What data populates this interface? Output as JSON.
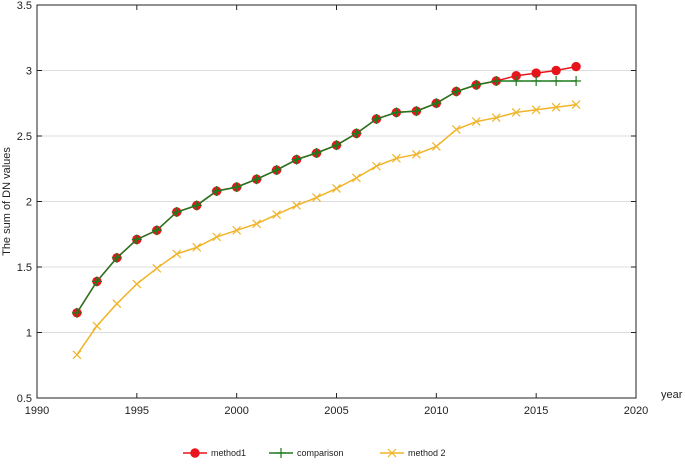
{
  "chart_data": {
    "type": "line",
    "title": "",
    "xlabel": "year",
    "ylabel": "The sum of DN values",
    "xlim": [
      1990,
      2020
    ],
    "ylim": [
      0.5,
      3.5
    ],
    "xticks": [
      1990,
      1995,
      2000,
      2005,
      2010,
      2015,
      2020
    ],
    "yticks": [
      0.5,
      1,
      1.5,
      2,
      2.5,
      3,
      3.5
    ],
    "grid": "horizontal",
    "legend_position": "bottom",
    "x": [
      1992,
      1993,
      1994,
      1995,
      1996,
      1997,
      1998,
      1999,
      2000,
      2001,
      2002,
      2003,
      2004,
      2005,
      2006,
      2007,
      2008,
      2009,
      2010,
      2011,
      2012,
      2013,
      2014,
      2015,
      2016,
      2017
    ],
    "series": [
      {
        "name": "method1",
        "color": "#e8141c",
        "marker": "circle",
        "values": [
          1.15,
          1.39,
          1.57,
          1.71,
          1.78,
          1.92,
          1.97,
          2.08,
          2.11,
          2.17,
          2.24,
          2.32,
          2.37,
          2.43,
          2.52,
          2.63,
          2.68,
          2.69,
          2.75,
          2.84,
          2.89,
          2.92,
          2.96,
          2.98,
          3.0,
          3.03
        ]
      },
      {
        "name": "comparison",
        "color": "#1f7a1f",
        "marker": "plus",
        "values": [
          1.15,
          1.39,
          1.57,
          1.71,
          1.78,
          1.92,
          1.97,
          2.08,
          2.11,
          2.17,
          2.24,
          2.32,
          2.37,
          2.43,
          2.52,
          2.63,
          2.68,
          2.69,
          2.75,
          2.84,
          2.89,
          2.92,
          2.92,
          2.92,
          2.92,
          2.92
        ]
      },
      {
        "name": "method 2",
        "color": "#f0b428",
        "marker": "x",
        "values": [
          0.83,
          1.05,
          1.22,
          1.37,
          1.49,
          1.6,
          1.65,
          1.73,
          1.78,
          1.83,
          1.9,
          1.97,
          2.03,
          2.1,
          2.18,
          2.27,
          2.33,
          2.36,
          2.42,
          2.55,
          2.61,
          2.64,
          2.68,
          2.7,
          2.72,
          2.74
        ]
      }
    ]
  }
}
